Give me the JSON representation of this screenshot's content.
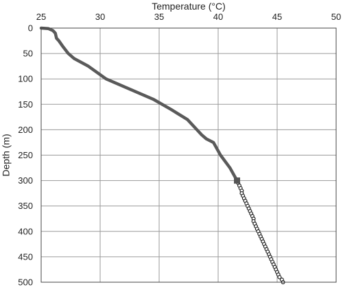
{
  "chart_data": {
    "type": "line",
    "title": "",
    "xlabel": "Temperature (°C)",
    "ylabel": "Depth (m)",
    "x_axis_position": "top",
    "y_axis_inverted": true,
    "xlim": [
      25,
      50
    ],
    "ylim": [
      0,
      500
    ],
    "x_ticks": [
      25,
      30,
      35,
      40,
      45,
      50
    ],
    "y_ticks": [
      0,
      50,
      100,
      150,
      200,
      250,
      300,
      350,
      400,
      450,
      500
    ],
    "grid": true,
    "legend": "none",
    "series": [
      {
        "style": "line",
        "color": "#5a5a5a",
        "points": [
          [
            25.0,
            0
          ],
          [
            25.6,
            1
          ],
          [
            26.0,
            5
          ],
          [
            26.2,
            10
          ],
          [
            26.3,
            20
          ],
          [
            26.5,
            25
          ],
          [
            26.8,
            35
          ],
          [
            27.3,
            50
          ],
          [
            27.8,
            60
          ],
          [
            29.0,
            75
          ],
          [
            30.5,
            100
          ],
          [
            32.5,
            120
          ],
          [
            34.5,
            140
          ],
          [
            36.0,
            160
          ],
          [
            37.4,
            180
          ],
          [
            38.2,
            200
          ],
          [
            38.6,
            210
          ],
          [
            39.0,
            218
          ],
          [
            39.6,
            225
          ],
          [
            40.2,
            250
          ],
          [
            41.0,
            275
          ],
          [
            41.6,
            300
          ]
        ]
      },
      {
        "style": "markers",
        "color": "#222222",
        "marker": "open-circle",
        "points": [
          [
            41.6,
            300
          ],
          [
            41.7,
            305
          ],
          [
            41.8,
            310
          ],
          [
            41.9,
            315
          ],
          [
            42.0,
            320
          ],
          [
            42.0,
            325
          ],
          [
            42.1,
            330
          ],
          [
            42.2,
            335
          ],
          [
            42.3,
            340
          ],
          [
            42.4,
            345
          ],
          [
            42.5,
            350
          ],
          [
            42.6,
            355
          ],
          [
            42.7,
            360
          ],
          [
            42.8,
            365
          ],
          [
            42.9,
            370
          ],
          [
            43.0,
            375
          ],
          [
            43.0,
            380
          ],
          [
            43.1,
            385
          ],
          [
            43.2,
            390
          ],
          [
            43.3,
            395
          ],
          [
            43.4,
            400
          ],
          [
            43.5,
            405
          ],
          [
            43.6,
            410
          ],
          [
            43.7,
            415
          ],
          [
            43.8,
            420
          ],
          [
            43.9,
            425
          ],
          [
            44.0,
            430
          ],
          [
            44.1,
            435
          ],
          [
            44.2,
            440
          ],
          [
            44.3,
            445
          ],
          [
            44.4,
            450
          ],
          [
            44.5,
            455
          ],
          [
            44.6,
            460
          ],
          [
            44.7,
            465
          ],
          [
            44.8,
            470
          ],
          [
            44.9,
            475
          ],
          [
            45.0,
            480
          ],
          [
            45.1,
            485
          ],
          [
            45.2,
            490
          ],
          [
            45.4,
            495
          ],
          [
            45.5,
            500
          ]
        ]
      },
      {
        "style": "marker",
        "color": "#555555",
        "marker": "filled-square",
        "points": [
          [
            41.6,
            300
          ]
        ]
      }
    ]
  }
}
